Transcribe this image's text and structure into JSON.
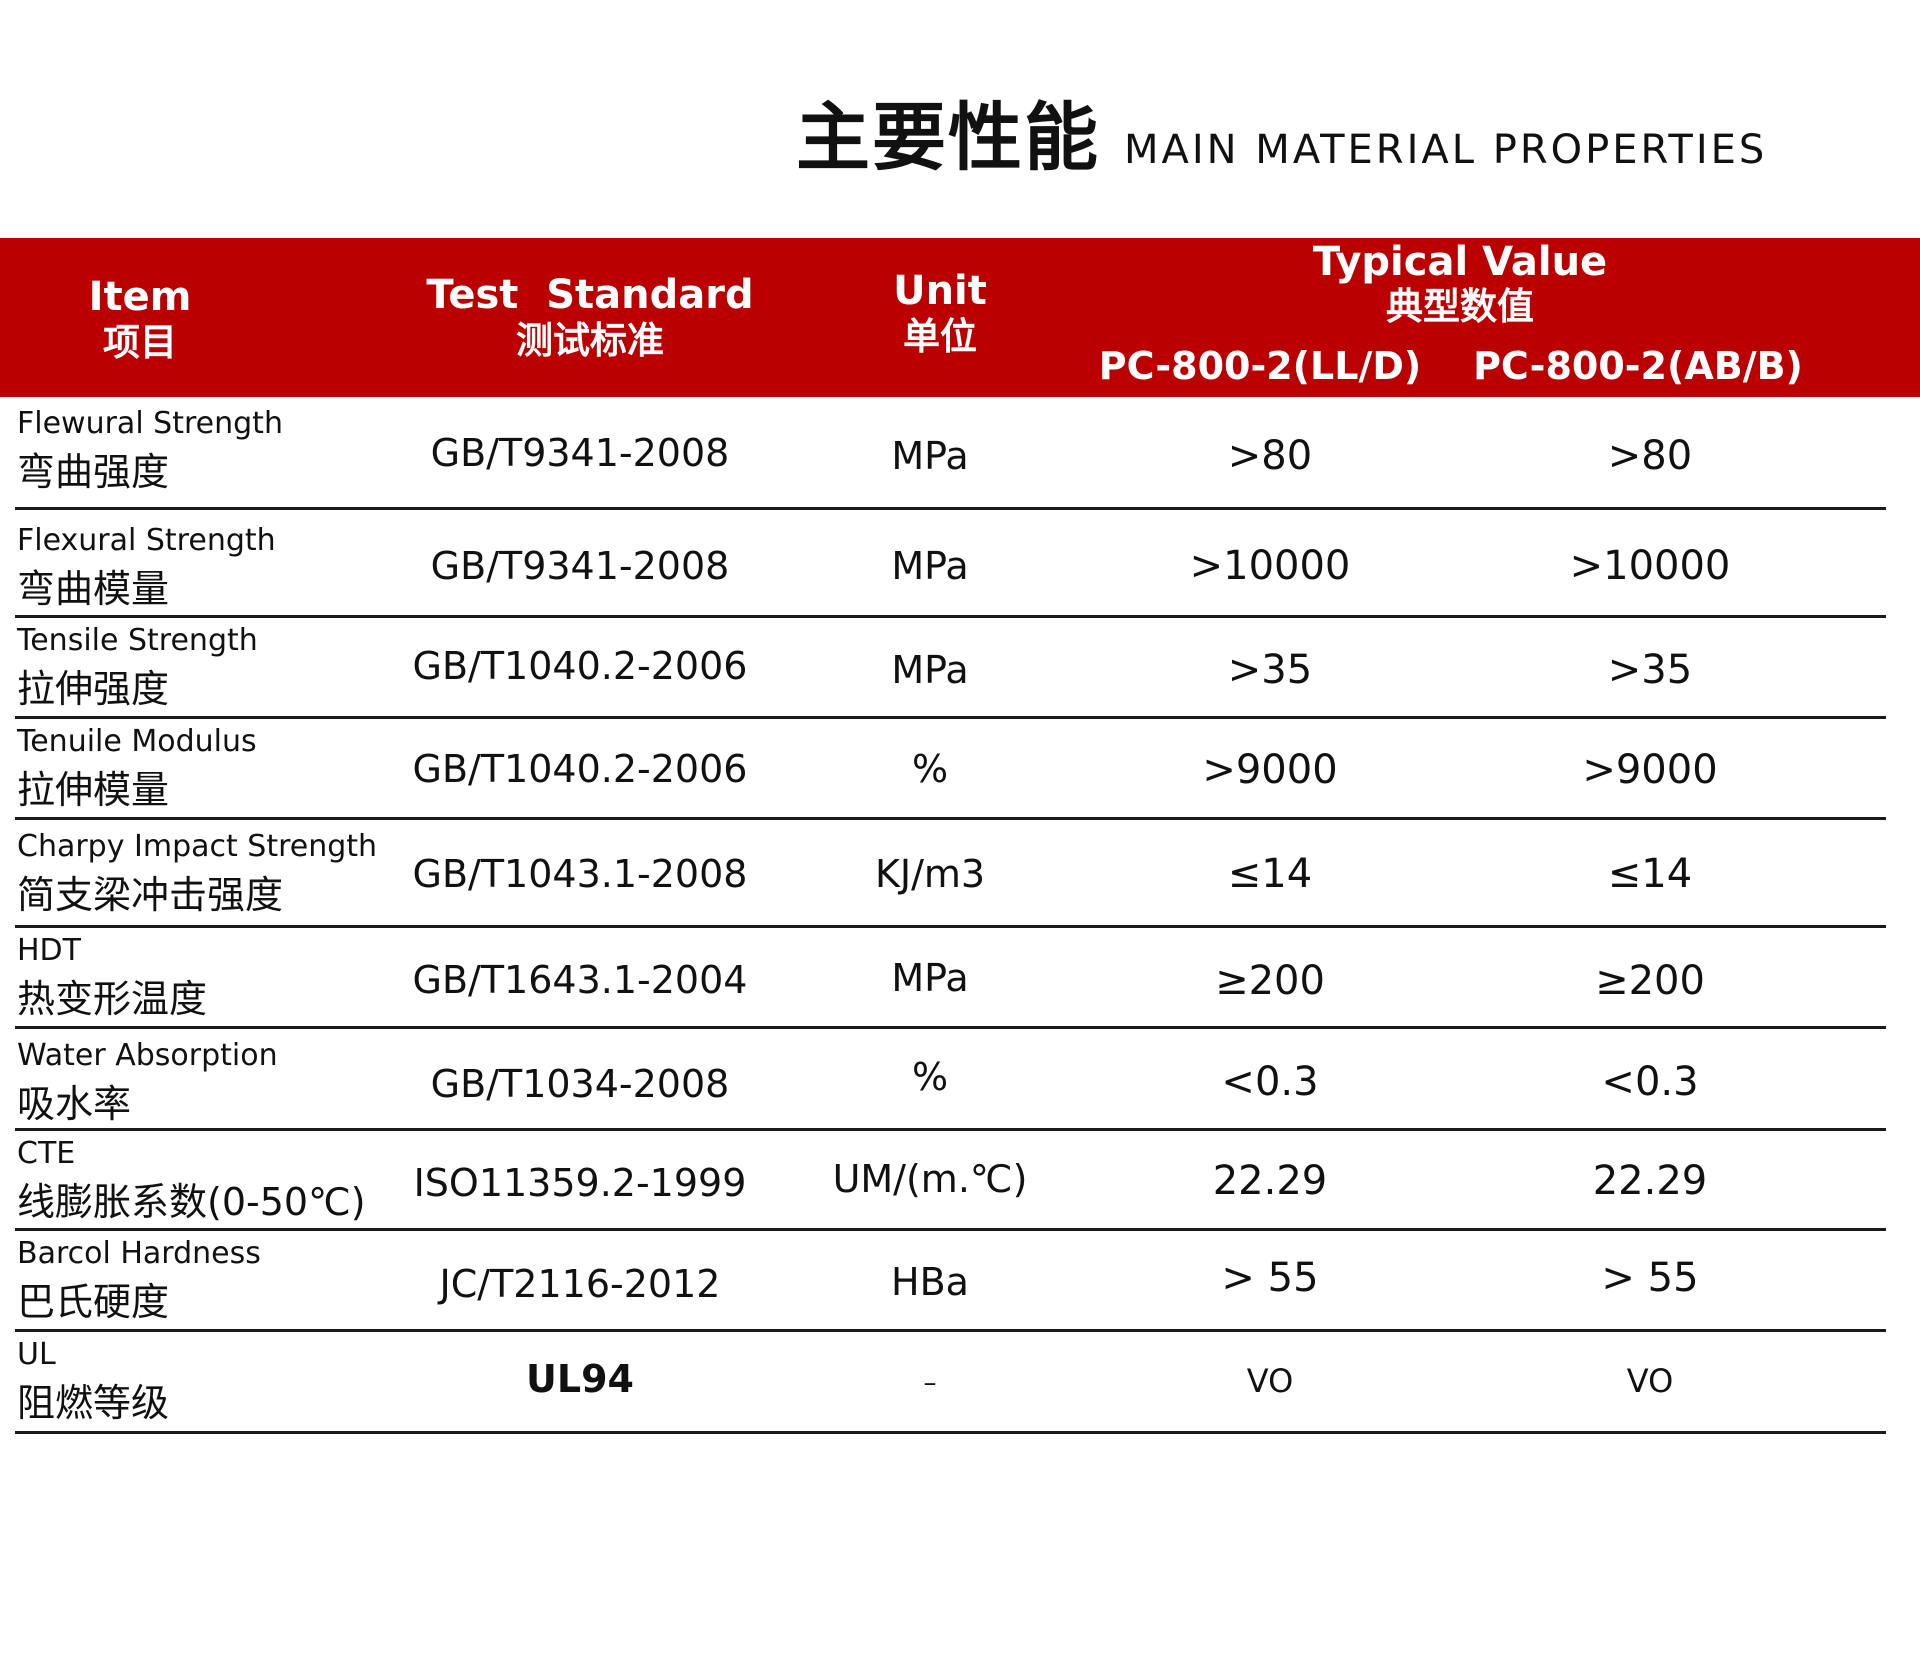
{
  "title": {
    "cn": "主要性能",
    "en": "MAIN MATERIAL PROPERTIES"
  },
  "header": {
    "item_en": "Item",
    "item_cn": "项目",
    "standard_en": "Test  Standard",
    "standard_cn": "测试标准",
    "unit_en": "Unit",
    "unit_cn": "单位",
    "typical_en": "Typical Value",
    "typical_cn": "典型数值",
    "product_1": "PC-800-2(LL/D)",
    "product_2": "PC-800-2(AB/B)"
  },
  "colors": {
    "header_bg": "#bb0002",
    "header_text": "#ffffff",
    "rule": "#1a1a1a"
  },
  "rows": [
    {
      "en": "Flewural Strength",
      "cn": "弯曲强度",
      "standard": "GB/T9341-2008",
      "unit": "MPa",
      "v1": ">80",
      "v2": ">80"
    },
    {
      "en": "Flexural Strength",
      "cn": "弯曲模量",
      "standard": "GB/T9341-2008",
      "unit": "MPa",
      "v1": ">10000",
      "v2": ">10000"
    },
    {
      "en": "Tensile Strength",
      "cn": "拉伸强度",
      "standard": "GB/T1040.2-2006",
      "unit": "MPa",
      "v1": ">35",
      "v2": ">35"
    },
    {
      "en": "Tenuile Modulus",
      "cn": "拉伸模量",
      "standard": "GB/T1040.2-2006",
      "unit": "%",
      "v1": ">9000",
      "v2": ">9000"
    },
    {
      "en": "Charpy Impact Strength",
      "cn": "简支梁冲击强度",
      "standard": "GB/T1043.1-2008",
      "unit": "KJ/m3",
      "v1": "≤14",
      "v2": "≤14"
    },
    {
      "en": "HDT",
      "cn": "热变形温度",
      "standard": "GB/T1643.1-2004",
      "unit": "MPa",
      "v1": "≥200",
      "v2": "≥200"
    },
    {
      "en": "Water Absorption",
      "cn": "吸水率",
      "standard": "GB/T1034-2008",
      "unit": "%",
      "v1": "<0.3",
      "v2": "<0.3"
    },
    {
      "en": "CTE",
      "cn": "线膨胀系数(0-50℃)",
      "standard": "ISO11359.2-1999",
      "unit": "UM/(m.℃)",
      "v1": "22.29",
      "v2": "22.29"
    },
    {
      "en": "Barcol Hardness",
      "cn": "巴氏硬度",
      "standard": "JC/T2116-2012",
      "unit": "HBa",
      "v1": "> 55",
      "v2": "> 55"
    },
    {
      "en": "UL",
      "cn": "阻燃等级",
      "standard": "UL94",
      "unit": "–",
      "v1": "VO",
      "v2": "VO"
    }
  ]
}
